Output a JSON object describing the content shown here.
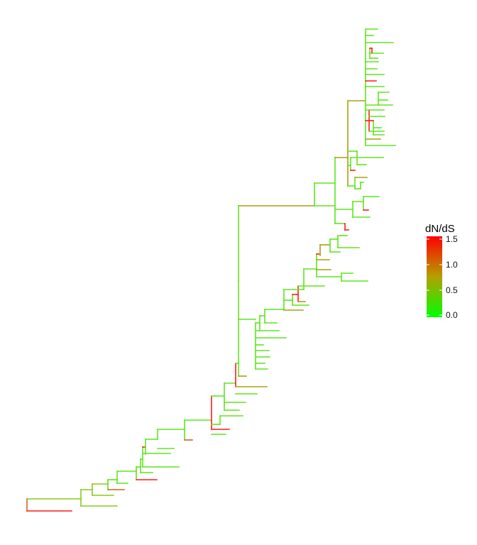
{
  "legend": {
    "title": "dN/dS",
    "ticks": [
      "1.5",
      "1.0",
      "0.5",
      "0.0"
    ],
    "color_high": "#ff0000",
    "color_mid": "#b4a000",
    "color_low": "#00ff00"
  },
  "colors": {
    "red": "#ff1a1a",
    "orange": "#d26414",
    "olive": "#a8a010",
    "yellowgreen": "#8cc81e",
    "green": "#5ee61e"
  }
}
